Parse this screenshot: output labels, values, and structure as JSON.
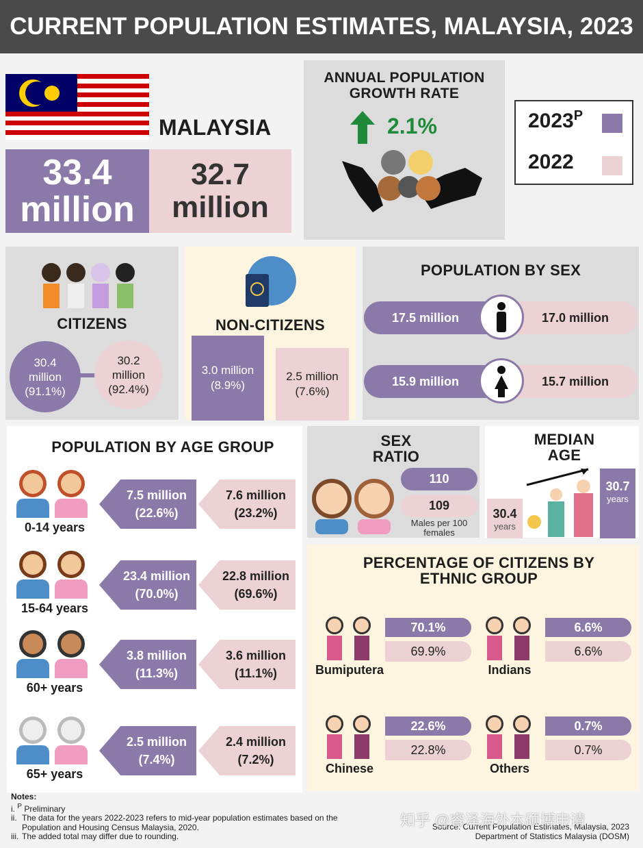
{
  "header": {
    "title": "CURRENT POPULATION ESTIMATES, MALAYSIA, 2023"
  },
  "malaysia": {
    "label": "MALAYSIA",
    "value_2023": "33.4 million",
    "value_2022": "32.7 million"
  },
  "growth": {
    "title": "ANNUAL POPULATION GROWTH RATE",
    "value": "2.1%"
  },
  "legend": {
    "year_current": "2023",
    "year_current_mark": "P",
    "year_previous": "2022"
  },
  "citizens": {
    "title": "CITIZENS",
    "value_2023": "30.4 million (91.1%)",
    "value_2022": "30.2 million (92.4%)"
  },
  "non_citizens": {
    "title": "NON-CITIZENS",
    "value_2023": "3.0 million (8.9%)",
    "value_2022": "2.5 million (7.6%)"
  },
  "sex": {
    "title": "POPULATION BY SEX",
    "male": {
      "value_2023": "17.5 million",
      "value_2022": "17.0 million"
    },
    "female": {
      "value_2023": "15.9 million",
      "value_2022": "15.7 million"
    }
  },
  "age": {
    "title": "POPULATION BY AGE GROUP",
    "groups": [
      {
        "label": "0-14 years",
        "value_2023": "7.5 million (22.6%)",
        "value_2022": "7.6 million (23.2%)"
      },
      {
        "label": "15-64 years",
        "value_2023": "23.4 million (70.0%)",
        "value_2022": "22.8 million (69.6%)"
      },
      {
        "label": "60+ years",
        "value_2023": "3.8 million (11.3%)",
        "value_2022": "3.6 million (11.1%)"
      },
      {
        "label": "65+ years",
        "value_2023": "2.5 million (7.4%)",
        "value_2022": "2.4 million (7.2%)"
      }
    ]
  },
  "sex_ratio": {
    "title": "SEX RATIO",
    "value_2023": "110",
    "value_2022": "109",
    "unit": "Males per 100 females"
  },
  "median_age": {
    "title": "MEDIAN AGE",
    "value_2022": "30.4",
    "value_2023": "30.7",
    "unit": "years"
  },
  "ethnic": {
    "title": "PERCENTAGE OF CITIZENS BY ETHNIC GROUP",
    "groups": [
      {
        "label": "Bumiputera",
        "value_2023": "70.1%",
        "value_2022": "69.9%"
      },
      {
        "label": "Indians",
        "value_2023": "6.6%",
        "value_2022": "6.6%"
      },
      {
        "label": "Chinese",
        "value_2023": "22.6%",
        "value_2022": "22.8%"
      },
      {
        "label": "Others",
        "value_2023": "0.7%",
        "value_2022": "0.7%"
      }
    ]
  },
  "notes": {
    "title": "Notes:",
    "items": [
      {
        "marker": "i.",
        "sup": "P",
        "text": "Preliminary"
      },
      {
        "marker": "ii.",
        "text": "The data for the years 2022-2023 refers to mid-year population estimates based on the Population and Housing Census Malaysia, 2020."
      },
      {
        "marker": "iii.",
        "text": "The added total may differ due to rounding."
      }
    ]
  },
  "source": {
    "line1": "Source: Current Population Estimates, Malaysia, 2023",
    "line2": "Department of Statistics Malaysia (DOSM)"
  },
  "watermark": "知乎 @睿泽海外本硕博申请"
}
